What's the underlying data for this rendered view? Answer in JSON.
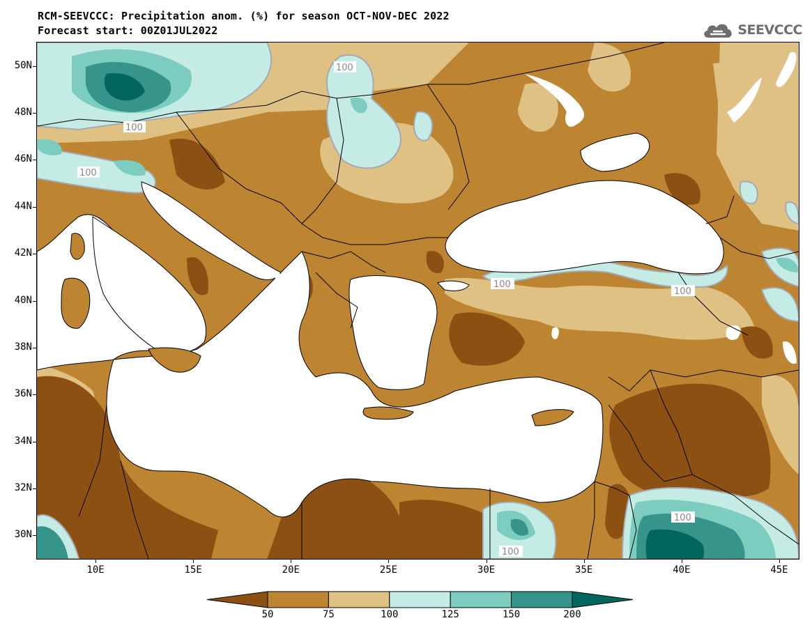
{
  "header": {
    "title_line1": "RCM-SEEVCCC: Precipitation anom. (%) for season OCT-NOV-DEC 2022",
    "title_line2": "Forecast start: 00Z01JUL2022"
  },
  "logo": {
    "text": "SEEVCCC",
    "icon": "cloud-icon"
  },
  "map": {
    "projection": "lat-lon",
    "lon_range": [
      7,
      46
    ],
    "lat_range": [
      29,
      51
    ],
    "lat_ticks": [
      "50N",
      "48N",
      "46N",
      "44N",
      "42N",
      "40N",
      "38N",
      "36N",
      "34N",
      "32N",
      "30N"
    ],
    "lon_ticks": [
      "10E",
      "15E",
      "20E",
      "25E",
      "30E",
      "35E",
      "40E",
      "45E"
    ],
    "contour_labels": [
      "100",
      "100",
      "100",
      "100",
      "100",
      "100",
      "100",
      "100"
    ],
    "colors": {
      "lt50": "#8c5112",
      "50-75": "#bd8432",
      "75-100": "#dfc183",
      "100-125": "#c5ebe5",
      "125-150": "#7ccdbf",
      "150-200": "#36948a",
      "gt200": "#02665e",
      "sea": "#ffffff",
      "contour100": "#a4a9b3"
    }
  },
  "colorbar": {
    "levels": [
      "50",
      "75",
      "100",
      "125",
      "150",
      "200"
    ],
    "colors": [
      "#8c5112",
      "#bd8432",
      "#dfc183",
      "#c5ebe5",
      "#7ccdbf",
      "#36948a",
      "#02665e"
    ]
  }
}
